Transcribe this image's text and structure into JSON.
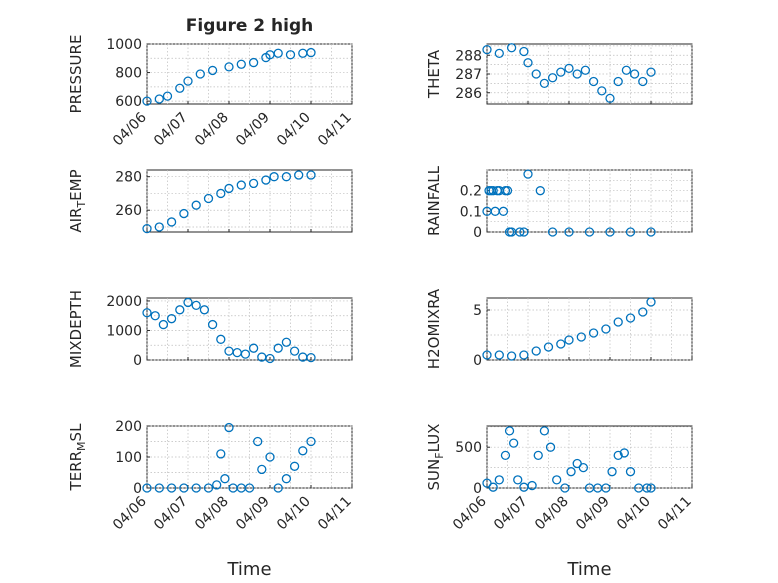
{
  "title": "Figure 2 high",
  "colors": {
    "marker": "#0072BD",
    "axes": "#262626",
    "grid": "#bdbdbd"
  },
  "chart_data": [
    {
      "id": "pressure",
      "type": "scatter",
      "ylabel": "PRESSURE",
      "ylabel_sub": "",
      "ylabel_post": "",
      "title": "Figure 2 high",
      "xlim": [
        0,
        5
      ],
      "ylim": [
        580,
        1000
      ],
      "yticks": [
        600,
        800,
        1000
      ],
      "xticklabels": [
        "04/06",
        "04/07",
        "04/08",
        "04/09",
        "04/10",
        "04/11"
      ],
      "xtick_values": [
        0,
        1,
        2,
        3,
        4,
        5
      ],
      "x": [
        0.0,
        0.3,
        0.5,
        0.8,
        1.0,
        1.3,
        1.6,
        2.0,
        2.3,
        2.6,
        2.9,
        3.0,
        3.2,
        3.5,
        3.8,
        4.0
      ],
      "y": [
        600,
        615,
        635,
        690,
        740,
        790,
        815,
        840,
        858,
        870,
        905,
        925,
        935,
        925,
        935,
        940
      ],
      "grid": true
    },
    {
      "id": "theta",
      "type": "scatter",
      "ylabel": "THETA",
      "ylabel_sub": "",
      "ylabel_post": "",
      "xlim": [
        0,
        5
      ],
      "ylim": [
        285.4,
        288.6
      ],
      "yticks": [
        286,
        287,
        288
      ],
      "xticklabels": [],
      "xtick_values": [
        0,
        1,
        2,
        3,
        4,
        5
      ],
      "x": [
        0.0,
        0.3,
        0.6,
        0.9,
        1.0,
        1.2,
        1.4,
        1.6,
        1.8,
        2.0,
        2.2,
        2.4,
        2.6,
        2.8,
        3.0,
        3.2,
        3.4,
        3.6,
        3.8,
        4.0
      ],
      "y": [
        288.3,
        288.1,
        288.4,
        288.2,
        287.6,
        287.0,
        286.5,
        286.8,
        287.1,
        287.3,
        287.0,
        287.2,
        286.6,
        286.1,
        285.7,
        286.6,
        287.2,
        287.0,
        286.6,
        287.1
      ],
      "grid": true
    },
    {
      "id": "air_temp",
      "type": "scatter",
      "ylabel": "AIR",
      "ylabel_sub": "T",
      "ylabel_post": "EMP",
      "xlim": [
        0,
        5
      ],
      "ylim": [
        247,
        284
      ],
      "yticks": [
        260,
        280
      ],
      "xticklabels": [],
      "xtick_values": [
        0,
        1,
        2,
        3,
        4,
        5
      ],
      "x": [
        0.0,
        0.3,
        0.6,
        0.9,
        1.2,
        1.5,
        1.8,
        2.0,
        2.3,
        2.6,
        2.9,
        3.1,
        3.4,
        3.7,
        4.0
      ],
      "y": [
        249,
        250,
        253,
        258,
        263,
        267,
        270,
        273,
        275,
        276,
        278,
        280,
        280,
        281,
        281
      ],
      "grid": true
    },
    {
      "id": "rainfall",
      "type": "scatter",
      "ylabel": "RAINFALL",
      "ylabel_sub": "",
      "ylabel_post": "",
      "xlim": [
        0,
        5
      ],
      "ylim": [
        0,
        0.3
      ],
      "yticks": [
        0,
        0.1,
        0.2
      ],
      "xticklabels": [],
      "xtick_values": [
        0,
        1,
        2,
        3,
        4,
        5
      ],
      "x": [
        0.0,
        0.05,
        0.1,
        0.15,
        0.2,
        0.25,
        0.3,
        0.4,
        0.45,
        0.5,
        0.55,
        0.6,
        0.8,
        0.9,
        1.0,
        1.3,
        1.6,
        2.0,
        2.5,
        3.0,
        3.5,
        4.0
      ],
      "y": [
        0.1,
        0.2,
        0.2,
        0.2,
        0.1,
        0.2,
        0.2,
        0.1,
        0.2,
        0.2,
        0.0,
        0.0,
        0.0,
        0.0,
        0.28,
        0.2,
        0.0,
        0.0,
        0.0,
        0.0,
        0.0,
        0.0
      ],
      "grid": true
    },
    {
      "id": "mixdepth",
      "type": "scatter",
      "ylabel": "MIXDEPTH",
      "ylabel_sub": "",
      "ylabel_post": "",
      "xlim": [
        0,
        5
      ],
      "ylim": [
        0,
        2100
      ],
      "yticks": [
        0,
        1000,
        2000
      ],
      "xticklabels": [],
      "xtick_values": [
        0,
        1,
        2,
        3,
        4,
        5
      ],
      "x": [
        0.0,
        0.2,
        0.4,
        0.6,
        0.8,
        1.0,
        1.2,
        1.4,
        1.6,
        1.8,
        2.0,
        2.2,
        2.4,
        2.6,
        2.8,
        3.0,
        3.2,
        3.4,
        3.6,
        3.8,
        4.0
      ],
      "y": [
        1600,
        1500,
        1200,
        1400,
        1700,
        1950,
        1850,
        1700,
        1200,
        700,
        300,
        250,
        200,
        400,
        100,
        50,
        400,
        600,
        300,
        100,
        80
      ],
      "grid": true
    },
    {
      "id": "h2omixra",
      "type": "scatter",
      "ylabel": "H2OMIXRA",
      "ylabel_sub": "",
      "ylabel_post": "",
      "xlim": [
        0,
        5
      ],
      "ylim": [
        0,
        6.2
      ],
      "yticks": [
        0,
        5
      ],
      "xticklabels": [],
      "xtick_values": [
        0,
        1,
        2,
        3,
        4,
        5
      ],
      "x": [
        0.0,
        0.3,
        0.6,
        0.9,
        1.2,
        1.5,
        1.8,
        2.0,
        2.3,
        2.6,
        2.9,
        3.2,
        3.5,
        3.8,
        4.0
      ],
      "y": [
        0.5,
        0.5,
        0.4,
        0.5,
        0.9,
        1.3,
        1.6,
        2.0,
        2.3,
        2.7,
        3.1,
        3.8,
        4.2,
        4.8,
        5.8
      ],
      "grid": true
    },
    {
      "id": "terr_msl",
      "type": "scatter",
      "ylabel": "TERR",
      "ylabel_sub": "M",
      "ylabel_post": "SL",
      "xlim": [
        0,
        5
      ],
      "ylim": [
        0,
        200
      ],
      "yticks": [
        0,
        100,
        200
      ],
      "xticklabels": [
        "04/06",
        "04/07",
        "04/08",
        "04/09",
        "04/10",
        "04/11"
      ],
      "xtick_values": [
        0,
        1,
        2,
        3,
        4,
        5
      ],
      "xlabel": "Time",
      "x": [
        0.0,
        0.3,
        0.6,
        0.9,
        1.2,
        1.5,
        1.7,
        1.8,
        1.9,
        2.0,
        2.1,
        2.3,
        2.5,
        2.7,
        2.8,
        3.0,
        3.2,
        3.4,
        3.6,
        3.8,
        4.0
      ],
      "y": [
        0,
        0,
        0,
        0,
        0,
        0,
        10,
        110,
        30,
        195,
        0,
        0,
        0,
        150,
        60,
        100,
        0,
        30,
        70,
        120,
        150
      ],
      "grid": true
    },
    {
      "id": "sun_flux",
      "type": "scatter",
      "ylabel": "SUN",
      "ylabel_sub": "F",
      "ylabel_post": "LUX",
      "xlim": [
        0,
        5
      ],
      "ylim": [
        0,
        760
      ],
      "yticks": [
        0,
        500
      ],
      "xticklabels": [
        "04/06",
        "04/07",
        "04/08",
        "04/09",
        "04/10",
        "04/11"
      ],
      "xtick_values": [
        0,
        1,
        2,
        3,
        4,
        5
      ],
      "xlabel": "Time",
      "x": [
        0.0,
        0.15,
        0.3,
        0.45,
        0.55,
        0.65,
        0.75,
        0.9,
        1.1,
        1.25,
        1.4,
        1.55,
        1.7,
        1.9,
        2.05,
        2.2,
        2.35,
        2.5,
        2.7,
        2.9,
        3.05,
        3.2,
        3.35,
        3.5,
        3.7,
        3.9,
        4.0
      ],
      "y": [
        60,
        10,
        100,
        400,
        700,
        550,
        100,
        10,
        30,
        400,
        700,
        500,
        100,
        0,
        200,
        300,
        250,
        0,
        0,
        0,
        200,
        400,
        430,
        200,
        0,
        0,
        0
      ],
      "grid": true
    }
  ]
}
